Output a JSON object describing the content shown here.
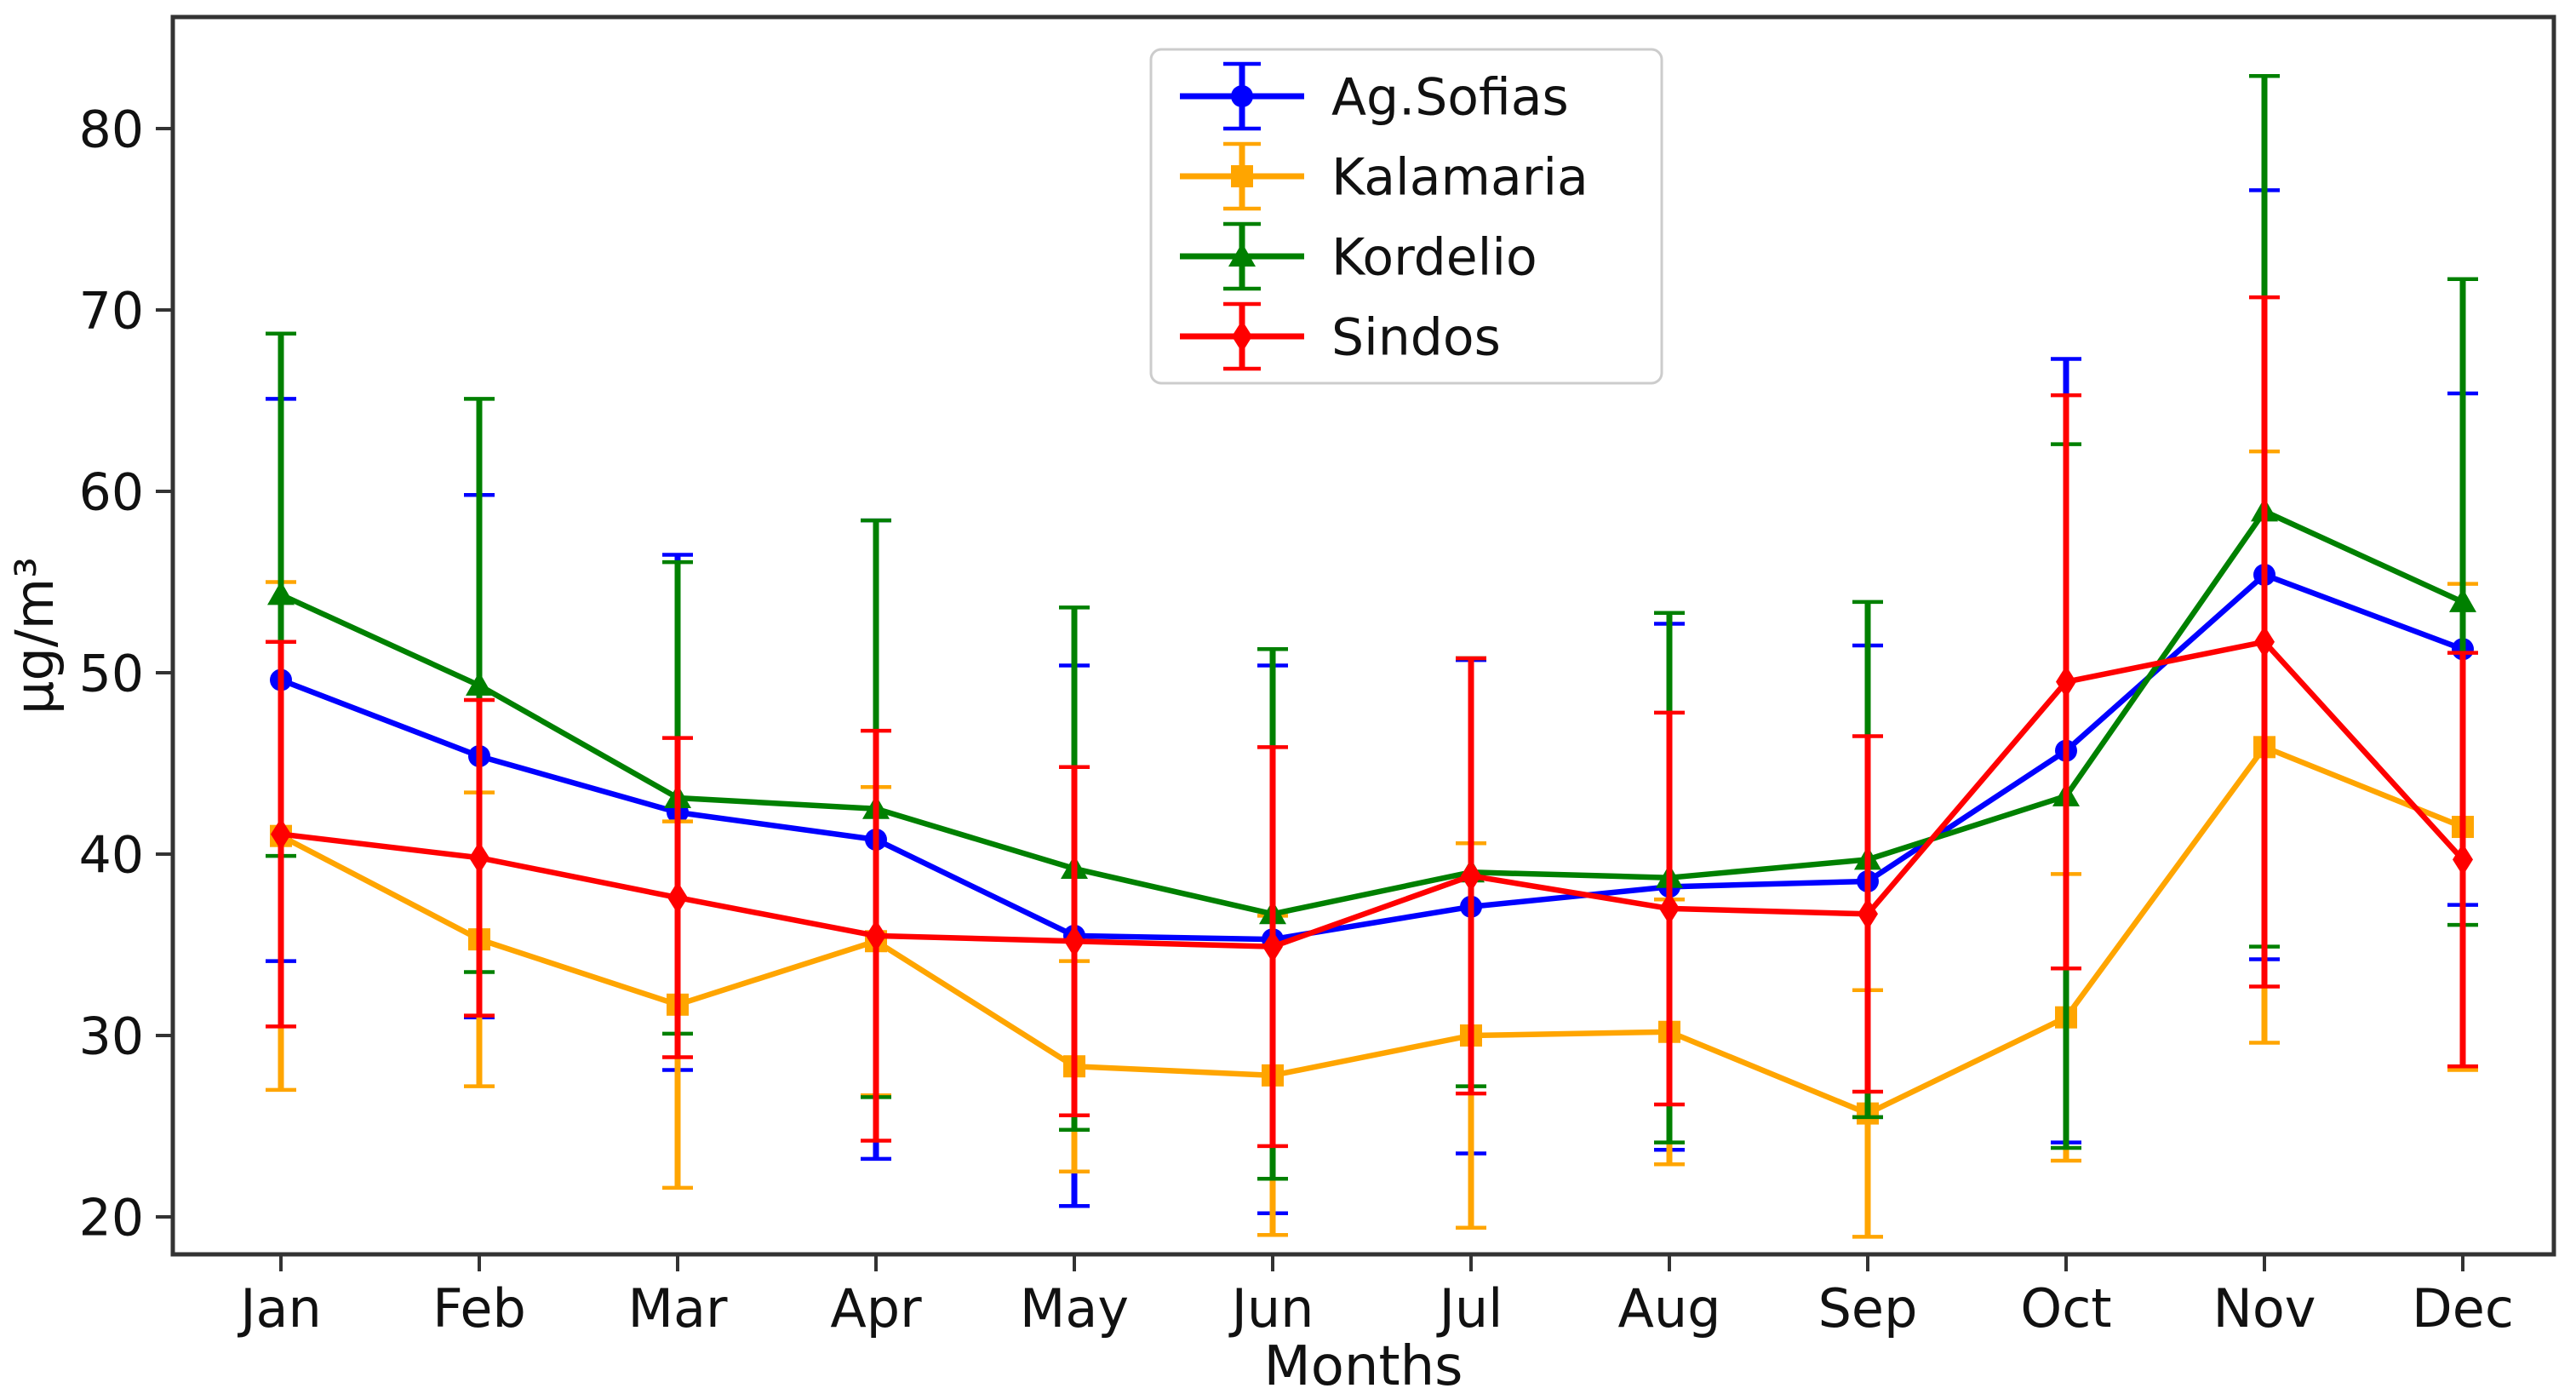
{
  "figure": {
    "xlabel": "Months",
    "ylabel": "µg/m³"
  },
  "chart_data": {
    "type": "line",
    "title": "",
    "xlabel": "Months",
    "ylabel": "µg/m³",
    "categories": [
      "Jan",
      "Feb",
      "Mar",
      "Apr",
      "May",
      "Jun",
      "Jul",
      "Aug",
      "Sep",
      "Oct",
      "Nov",
      "Dec"
    ],
    "yticks": [
      20,
      30,
      40,
      50,
      60,
      70,
      80
    ],
    "ylim": [
      18,
      86.5
    ],
    "grid": false,
    "legend_position": "upper center",
    "error_bars": "symmetric, with caps",
    "series": [
      {
        "name": "Ag.Sofias",
        "color": "#0000FF",
        "marker": "circle",
        "values": [
          49.6,
          45.4,
          42.3,
          40.8,
          35.5,
          35.3,
          37.1,
          38.2,
          38.5,
          45.7,
          55.4,
          51.3
        ],
        "errors": [
          15.5,
          14.4,
          14.2,
          17.6,
          14.9,
          15.1,
          13.6,
          14.5,
          13.0,
          21.6,
          21.2,
          14.1
        ]
      },
      {
        "name": "Kalamaria",
        "color": "#FFA500",
        "marker": "square",
        "values": [
          41.0,
          35.3,
          31.7,
          35.2,
          28.3,
          27.8,
          30.0,
          30.2,
          25.7,
          31.0,
          45.9,
          41.5
        ],
        "errors": [
          14.0,
          8.1,
          10.1,
          8.5,
          5.8,
          8.8,
          10.6,
          7.3,
          6.8,
          7.9,
          16.3,
          13.4
        ]
      },
      {
        "name": "Kordelio",
        "color": "#008000",
        "marker": "triangle",
        "values": [
          54.3,
          49.3,
          43.1,
          42.5,
          39.2,
          36.7,
          39.0,
          38.7,
          39.7,
          43.2,
          58.9,
          53.9
        ],
        "errors": [
          14.4,
          15.8,
          13.0,
          15.9,
          14.4,
          14.6,
          11.8,
          14.6,
          14.2,
          19.4,
          24.0,
          17.8
        ]
      },
      {
        "name": "Sindos",
        "color": "#FF0000",
        "marker": "diamond",
        "values": [
          41.1,
          39.8,
          37.6,
          35.5,
          35.2,
          34.9,
          38.8,
          37.0,
          36.7,
          49.5,
          51.7,
          39.7
        ],
        "errors": [
          10.6,
          8.7,
          8.8,
          11.3,
          9.6,
          11.0,
          12.0,
          10.8,
          9.8,
          15.8,
          19.0,
          11.4
        ]
      }
    ]
  }
}
